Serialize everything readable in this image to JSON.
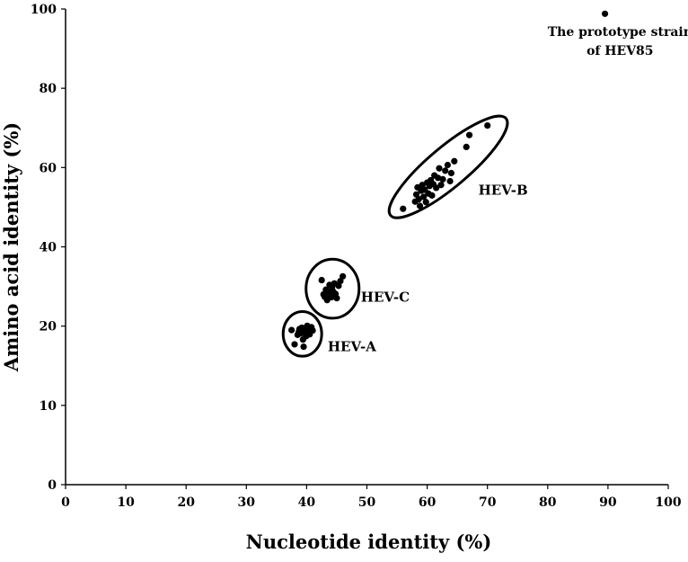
{
  "chart_data": {
    "type": "scatter",
    "title": "",
    "xlabel": "Nucleotide identity (%)",
    "ylabel": "Amino acid identity (%)",
    "xlim": [
      0,
      100
    ],
    "ylim": [
      0,
      100
    ],
    "xticks": [
      "0",
      "10",
      "20",
      "30",
      "40",
      "50",
      "60",
      "70",
      "80",
      "90",
      "100"
    ],
    "yticks": [
      "0",
      "10",
      "20",
      "40",
      "60",
      "80",
      "100"
    ],
    "y_axis_note": "tick labels are printed as 0,10,20,40,60,80,100 at evenly spaced positions",
    "grid": false,
    "legend": "none",
    "marker_color": "#000000",
    "series": [
      {
        "points": [
          [
            37.5,
            32.5
          ],
          [
            38.0,
            29.5
          ],
          [
            38.5,
            31.5
          ],
          [
            38.8,
            32.7
          ],
          [
            39.0,
            31.8
          ],
          [
            39.2,
            33.0
          ],
          [
            39.4,
            30.5
          ],
          [
            39.5,
            29.0
          ],
          [
            39.7,
            32.2
          ],
          [
            39.9,
            31.2
          ],
          [
            40.1,
            33.4
          ],
          [
            40.3,
            32.5
          ],
          [
            40.5,
            31.6
          ],
          [
            40.8,
            33.1
          ],
          [
            41.0,
            32.4
          ],
          [
            39.3,
            32.0
          ],
          [
            40.0,
            32.9
          ],
          [
            38.7,
            32.1
          ],
          [
            42.5,
            43.0
          ],
          [
            42.8,
            40.0
          ],
          [
            43.0,
            39.5
          ],
          [
            43.2,
            41.0
          ],
          [
            43.4,
            38.8
          ],
          [
            43.6,
            40.5
          ],
          [
            43.8,
            42.0
          ],
          [
            44.0,
            39.8
          ],
          [
            44.2,
            41.5
          ],
          [
            44.4,
            40.6
          ],
          [
            44.6,
            42.3
          ],
          [
            44.8,
            40.1
          ],
          [
            45.0,
            39.2
          ],
          [
            45.3,
            41.8
          ],
          [
            45.6,
            42.8
          ],
          [
            46.0,
            43.8
          ],
          [
            43.5,
            40.0
          ],
          [
            44.1,
            39.4
          ],
          [
            56.0,
            58.0
          ],
          [
            58.0,
            59.5
          ],
          [
            58.2,
            61.0
          ],
          [
            58.4,
            62.5
          ],
          [
            58.6,
            60.0
          ],
          [
            58.8,
            58.6
          ],
          [
            59.0,
            61.8
          ],
          [
            59.2,
            63.0
          ],
          [
            59.4,
            60.5
          ],
          [
            59.6,
            62.0
          ],
          [
            59.8,
            59.4
          ],
          [
            60.0,
            63.5
          ],
          [
            60.2,
            61.2
          ],
          [
            60.4,
            62.8
          ],
          [
            60.6,
            64.0
          ],
          [
            60.8,
            60.8
          ],
          [
            61.0,
            63.2
          ],
          [
            61.2,
            65.0
          ],
          [
            61.5,
            62.4
          ],
          [
            61.8,
            64.5
          ],
          [
            62.0,
            66.5
          ],
          [
            62.3,
            63.0
          ],
          [
            62.6,
            64.2
          ],
          [
            63.0,
            66.0
          ],
          [
            63.4,
            67.2
          ],
          [
            63.8,
            63.8
          ],
          [
            64.0,
            65.5
          ],
          [
            64.5,
            68.0
          ],
          [
            66.5,
            71.0
          ],
          [
            67.0,
            73.5
          ],
          [
            70.0,
            75.5
          ]
        ]
      },
      {
        "points": [
          [
            89.5,
            99.0
          ]
        ]
      }
    ],
    "clusters": [
      {
        "label": "HEV-A",
        "cx": 39.3,
        "cy": 31.7,
        "rx": 3.2,
        "ry": 4.7,
        "rotate": 0
      },
      {
        "label": "HEV-C",
        "cx": 44.3,
        "cy": 41.2,
        "rx": 4.4,
        "ry": 6.2,
        "rotate": 0
      },
      {
        "label": "HEV-B",
        "cx": 63.5,
        "cy": 66.8,
        "rx": 12.5,
        "ry": 4.2,
        "rotate": -40
      }
    ],
    "annotations": [
      {
        "lines": [
          "The prototype strain",
          "of HEV85"
        ]
      }
    ]
  }
}
